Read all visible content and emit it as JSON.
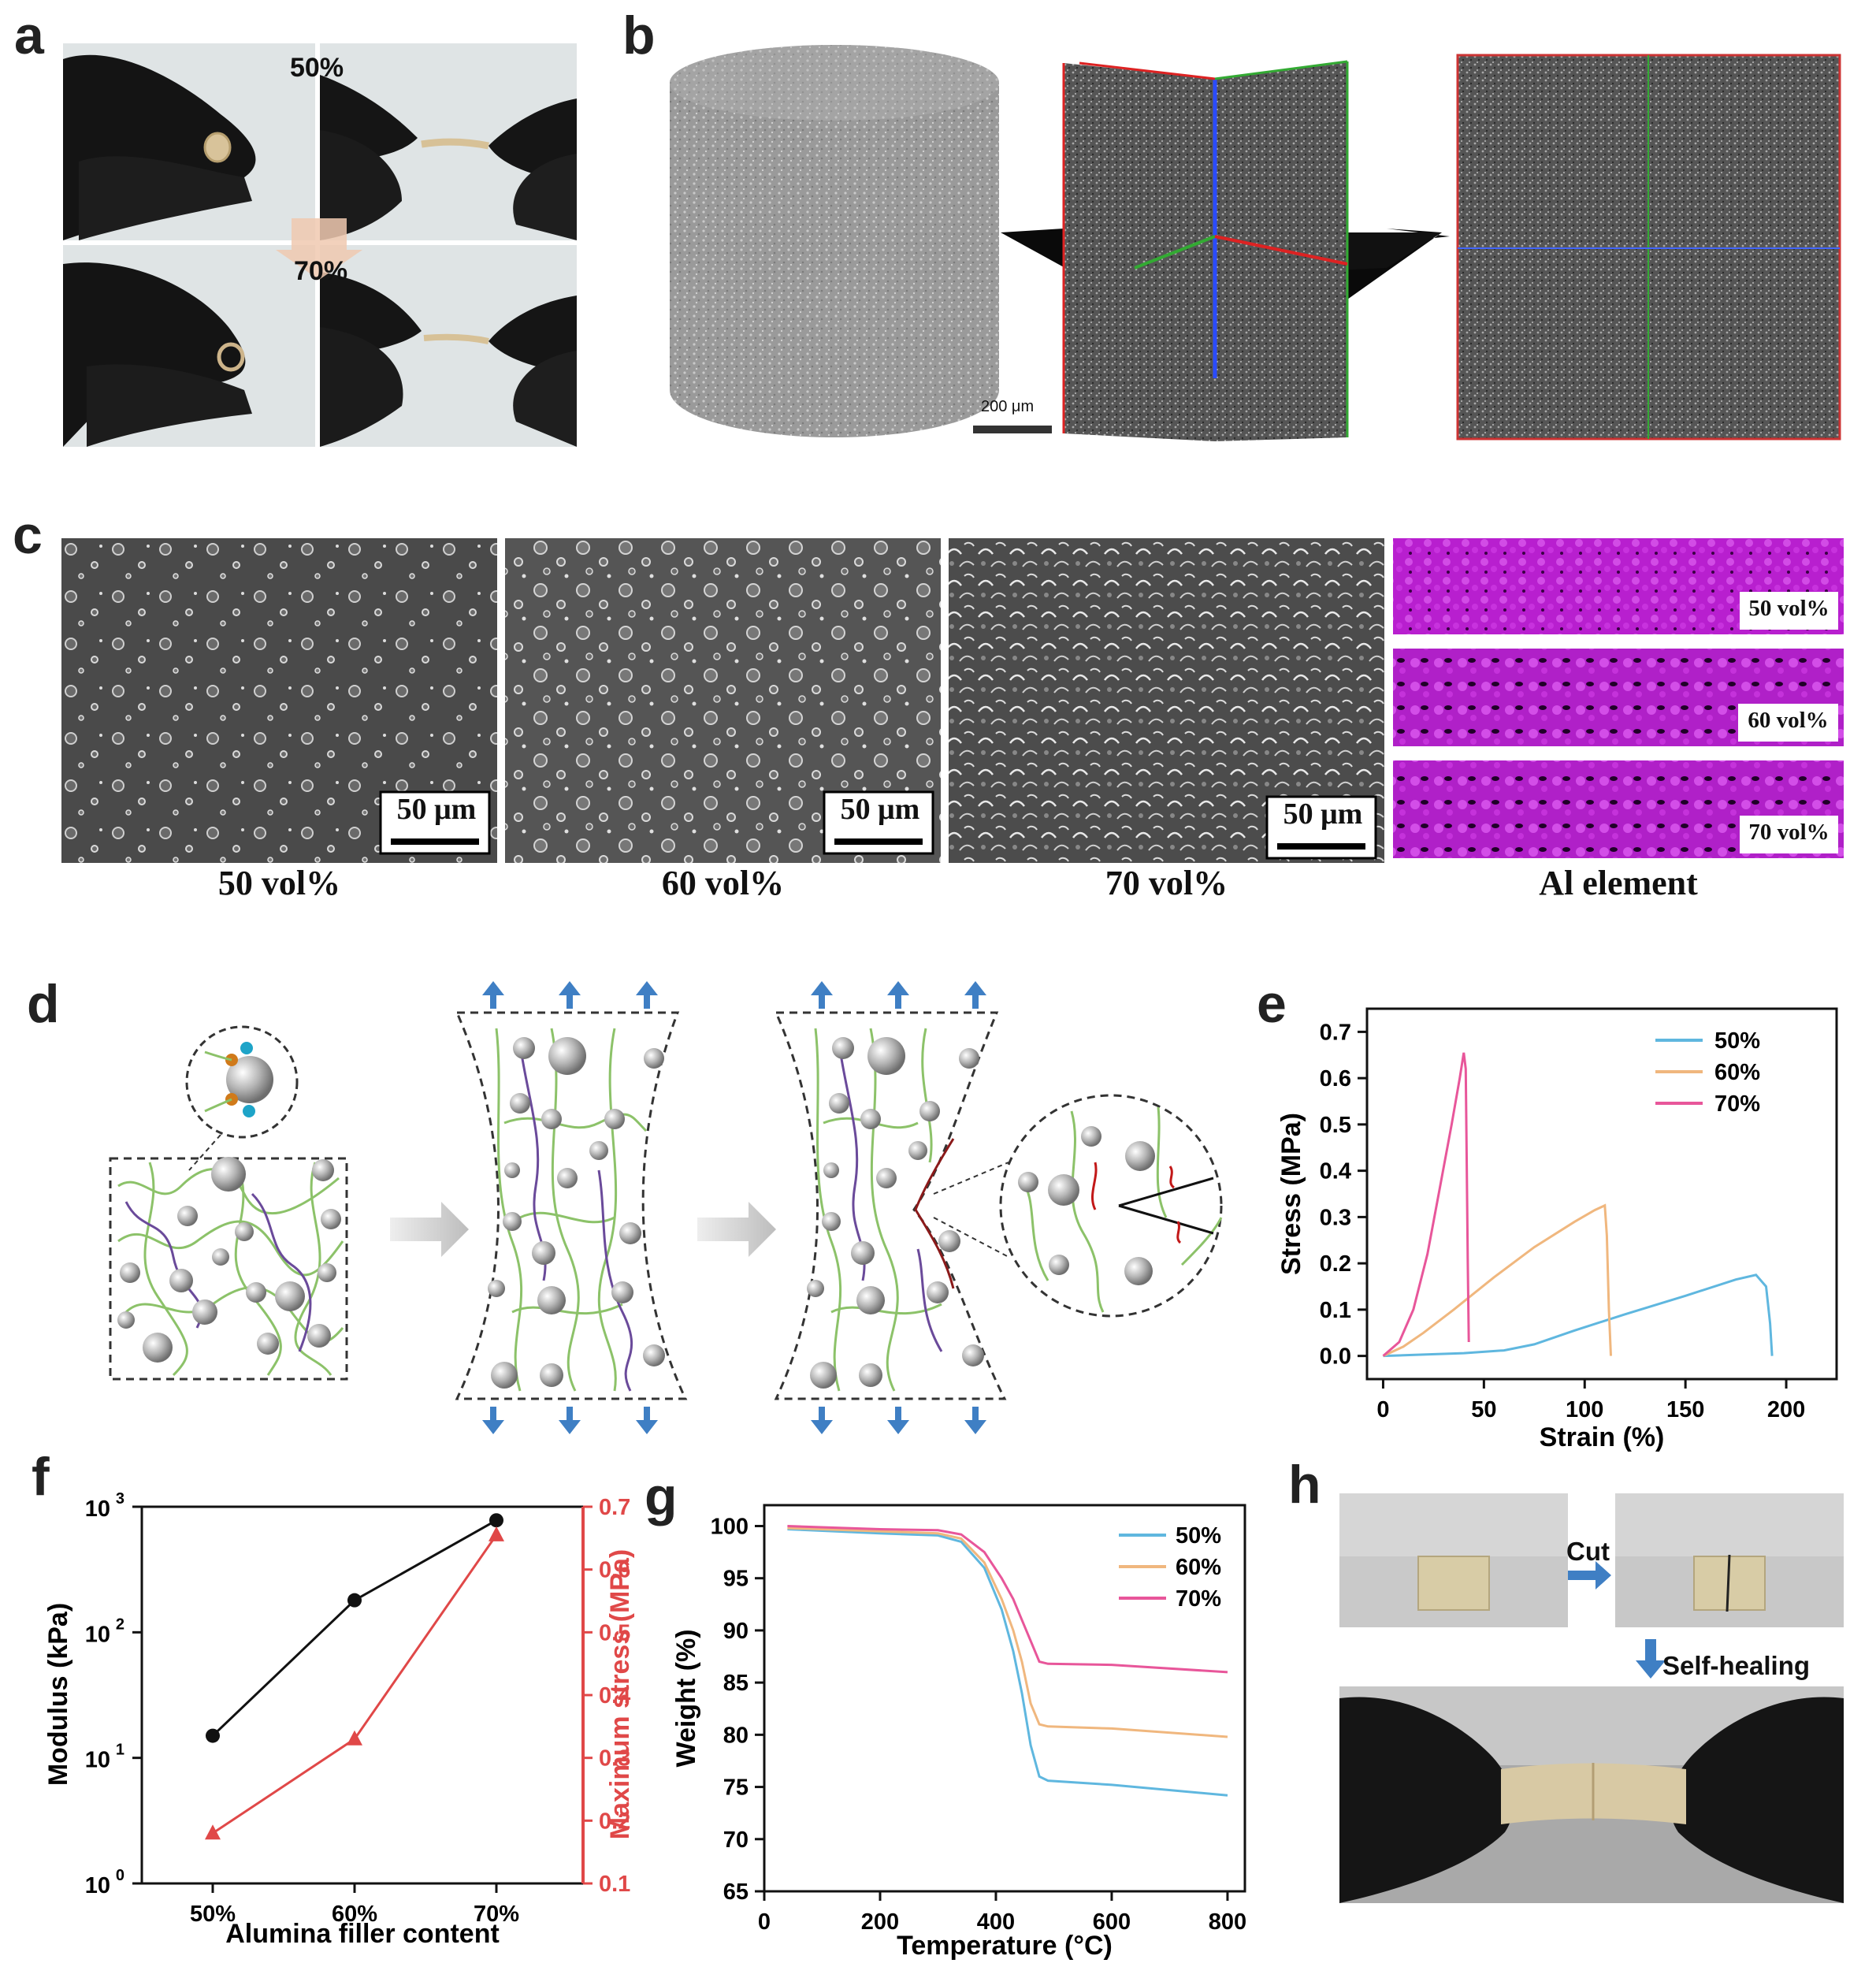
{
  "panels": {
    "a": {
      "letter": "a",
      "labels": [
        "50%",
        "70%"
      ]
    },
    "b": {
      "letter": "b",
      "scale_bar": "200 μm"
    },
    "c": {
      "letter": "c",
      "scale_bar": "50 μm",
      "captions": [
        "50 vol%",
        "60 vol%",
        "70 vol%",
        "Al element"
      ],
      "map_labels": [
        "50 vol%",
        "60 vol%",
        "70 vol%"
      ]
    },
    "d": {
      "letter": "d"
    },
    "e": {
      "letter": "e"
    },
    "f": {
      "letter": "f"
    },
    "g": {
      "letter": "g"
    },
    "h": {
      "letter": "h",
      "cut_label": "Cut",
      "heal_label": "Self-healing"
    }
  },
  "colors": {
    "blue": "#5fb7df",
    "orange": "#f0b77e",
    "pink": "#e8569a",
    "black": "#111111",
    "red": "#e04848",
    "magenta": "#b81fcf",
    "chain_green": "#8cc269",
    "chain_purple": "#6a4a9a",
    "arrow_blue": "#3f7fc4"
  },
  "chart_data": [
    {
      "id": "e",
      "type": "line",
      "xlabel": "Strain (%)",
      "ylabel": "Stress (MPa)",
      "xlim": [
        -8,
        225
      ],
      "ylim": [
        -0.05,
        0.75
      ],
      "xticks": [
        0,
        50,
        100,
        150,
        200
      ],
      "yticks": [
        0.0,
        0.1,
        0.2,
        0.3,
        0.4,
        0.5,
        0.6,
        0.7
      ],
      "legend_position": "top-right",
      "series": [
        {
          "name": "50%",
          "color": "#5fb7df",
          "points": [
            [
              0,
              0
            ],
            [
              20,
              0.003
            ],
            [
              40,
              0.006
            ],
            [
              60,
              0.012
            ],
            [
              75,
              0.025
            ],
            [
              95,
              0.055
            ],
            [
              120,
              0.09
            ],
            [
              150,
              0.13
            ],
            [
              175,
              0.165
            ],
            [
              185,
              0.175
            ],
            [
              190,
              0.15
            ],
            [
              192,
              0.07
            ],
            [
              193,
              0.0
            ]
          ]
        },
        {
          "name": "60%",
          "color": "#f0b77e",
          "points": [
            [
              0,
              0
            ],
            [
              10,
              0.02
            ],
            [
              20,
              0.05
            ],
            [
              35,
              0.1
            ],
            [
              55,
              0.17
            ],
            [
              75,
              0.235
            ],
            [
              95,
              0.29
            ],
            [
              105,
              0.315
            ],
            [
              110,
              0.325
            ],
            [
              111,
              0.26
            ],
            [
              112,
              0.1
            ],
            [
              113,
              0.0
            ]
          ]
        },
        {
          "name": "70%",
          "color": "#e8569a",
          "points": [
            [
              0,
              0
            ],
            [
              8,
              0.03
            ],
            [
              15,
              0.1
            ],
            [
              22,
              0.22
            ],
            [
              28,
              0.36
            ],
            [
              34,
              0.5
            ],
            [
              38,
              0.6
            ],
            [
              40,
              0.655
            ],
            [
              41,
              0.62
            ],
            [
              42,
              0.2
            ],
            [
              42.5,
              0.03
            ]
          ]
        }
      ]
    },
    {
      "id": "f",
      "type": "line",
      "xlabel": "Alumina filler content",
      "ylabel_left": "Modulus (kPa)",
      "ylabel_right": "Maximum stress (MPa)",
      "categories": [
        "50%",
        "60%",
        "70%"
      ],
      "left_scale": "log",
      "left_ylim": [
        1,
        1000
      ],
      "left_tick_exponents": [
        "0",
        "1",
        "2",
        "3"
      ],
      "right_ylim": [
        0.1,
        0.7
      ],
      "right_ticks": [
        0.1,
        0.2,
        0.3,
        0.4,
        0.5,
        0.6,
        0.7
      ],
      "series": [
        {
          "name": "Modulus",
          "axis": "left",
          "color": "#111111",
          "marker": "circle",
          "values": [
            15,
            180,
            780
          ]
        },
        {
          "name": "Maximum stress",
          "axis": "right",
          "color": "#e04848",
          "marker": "triangle",
          "values": [
            0.18,
            0.33,
            0.655
          ]
        }
      ]
    },
    {
      "id": "g",
      "type": "line",
      "xlabel": "Temperature (°C)",
      "ylabel": "Weight (%)",
      "xlim": [
        0,
        830
      ],
      "ylim": [
        65,
        102
      ],
      "xticks": [
        0,
        200,
        400,
        600,
        800
      ],
      "yticks": [
        65,
        70,
        75,
        80,
        85,
        90,
        95,
        100
      ],
      "legend_position": "top-right",
      "series": [
        {
          "name": "50%",
          "color": "#5fb7df",
          "points": [
            [
              40,
              99.7
            ],
            [
              200,
              99.3
            ],
            [
              300,
              99.1
            ],
            [
              340,
              98.5
            ],
            [
              380,
              96
            ],
            [
              410,
              92
            ],
            [
              430,
              88
            ],
            [
              445,
              84
            ],
            [
              460,
              79
            ],
            [
              475,
              76
            ],
            [
              490,
              75.6
            ],
            [
              600,
              75.2
            ],
            [
              800,
              74.2
            ]
          ]
        },
        {
          "name": "60%",
          "color": "#f0b77e",
          "points": [
            [
              40,
              99.8
            ],
            [
              200,
              99.5
            ],
            [
              300,
              99.3
            ],
            [
              340,
              98.8
            ],
            [
              380,
              96.5
            ],
            [
              410,
              93
            ],
            [
              430,
              90
            ],
            [
              445,
              87
            ],
            [
              460,
              83
            ],
            [
              475,
              81
            ],
            [
              490,
              80.8
            ],
            [
              600,
              80.6
            ],
            [
              800,
              79.8
            ]
          ]
        },
        {
          "name": "70%",
          "color": "#e8569a",
          "points": [
            [
              40,
              100
            ],
            [
              200,
              99.7
            ],
            [
              300,
              99.6
            ],
            [
              340,
              99.2
            ],
            [
              380,
              97.5
            ],
            [
              410,
              95
            ],
            [
              430,
              93
            ],
            [
              445,
              91
            ],
            [
              460,
              89
            ],
            [
              475,
              87
            ],
            [
              490,
              86.8
            ],
            [
              600,
              86.7
            ],
            [
              800,
              86.0
            ]
          ]
        }
      ]
    }
  ]
}
